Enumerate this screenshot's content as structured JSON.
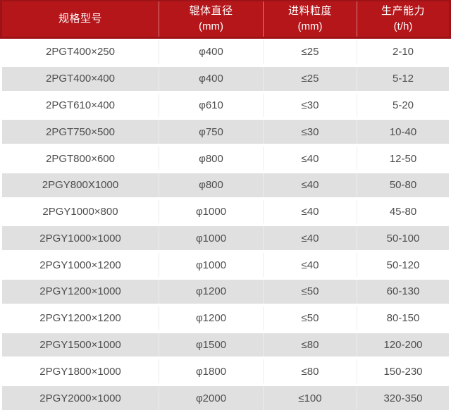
{
  "chart_data": {
    "type": "table",
    "columns": [
      {
        "title": "规格型号",
        "unit": ""
      },
      {
        "title": "辊体直径",
        "unit": "(mm)"
      },
      {
        "title": "进料粒度",
        "unit": "(mm)"
      },
      {
        "title": "生产能力",
        "unit": "(t/h)"
      }
    ],
    "rows": [
      [
        "2PGT400×250",
        "φ400",
        "≤25",
        "2-10"
      ],
      [
        "2PGT400×400",
        "φ400",
        "≤25",
        "5-12"
      ],
      [
        "2PGT610×400",
        "φ610",
        "≤30",
        "5-20"
      ],
      [
        "2PGT750×500",
        "φ750",
        "≤30",
        "10-40"
      ],
      [
        "2PGT800×600",
        "φ800",
        "≤40",
        "12-50"
      ],
      [
        "2PGY800X1000",
        "φ800",
        "≤40",
        "50-80"
      ],
      [
        "2PGY1000×800",
        "φ1000",
        "≤40",
        "45-80"
      ],
      [
        "2PGY1000×1000",
        "φ1000",
        "≤40",
        "50-100"
      ],
      [
        "2PGY1000×1200",
        "φ1000",
        "≤40",
        "50-120"
      ],
      [
        "2PGY1200×1000",
        "φ1200",
        "≤50",
        "60-130"
      ],
      [
        "2PGY1200×1200",
        "φ1200",
        "≤50",
        "80-150"
      ],
      [
        "2PGY1500×1000",
        "φ1500",
        "≤80",
        "120-200"
      ],
      [
        "2PGY1800×1000",
        "φ1800",
        "≤80",
        "150-230"
      ],
      [
        "2PGY2000×1000",
        "φ2000",
        "≤100",
        "320-350"
      ]
    ]
  },
  "colors": {
    "header_bg": "#b5161a",
    "header_border": "#9c1216",
    "header_text": "#ffffff",
    "row_bg": "#ffffff",
    "row_alt_bg": "#e0e0e0",
    "body_text": "#4d4d4d",
    "separator": "#ededed"
  }
}
